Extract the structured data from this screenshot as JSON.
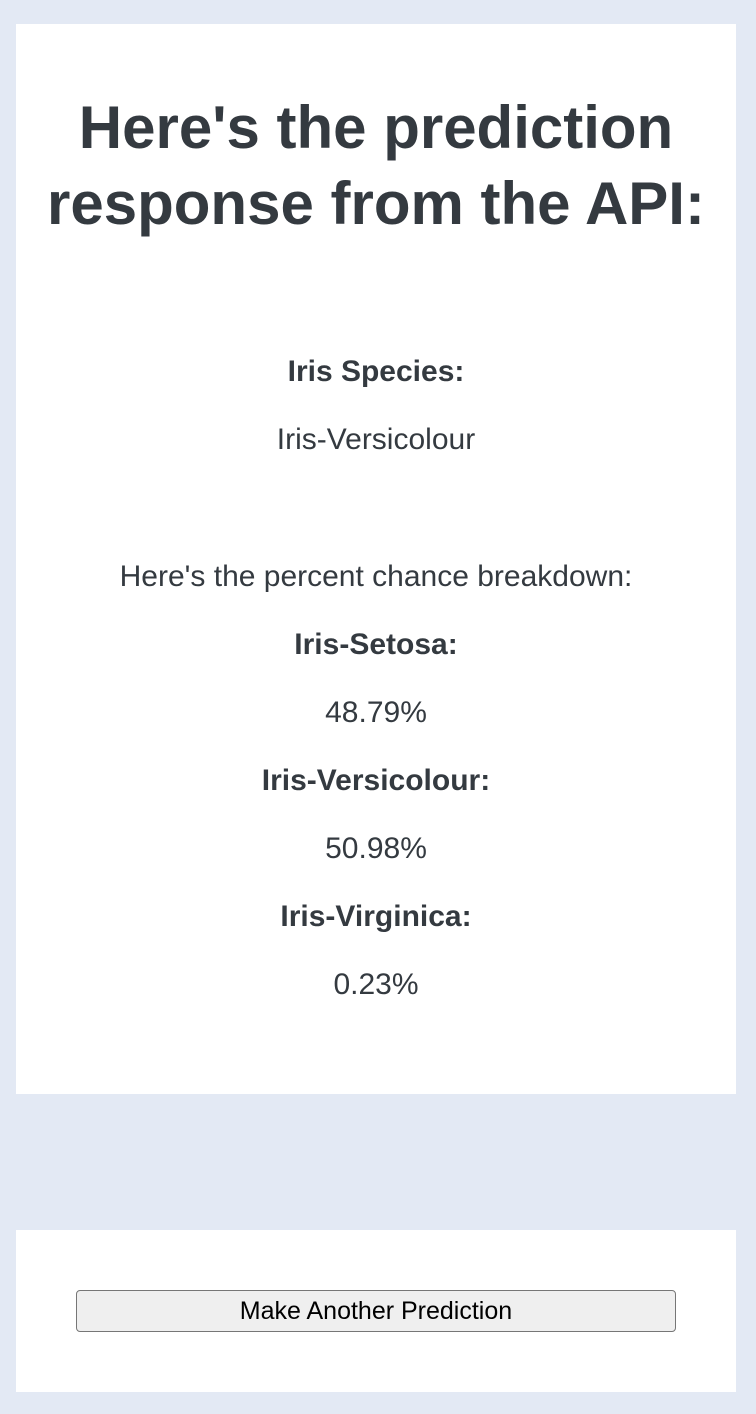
{
  "result": {
    "heading": "Here's the prediction response from the API:",
    "species_label": "Iris Species:",
    "species_value": "Iris-Versicolour",
    "breakdown_intro": "Here's the percent chance breakdown:",
    "breakdown": [
      {
        "label": "Iris-Setosa:",
        "value": "48.79%"
      },
      {
        "label": "Iris-Versicolour:",
        "value": "50.98%"
      },
      {
        "label": "Iris-Virginica:",
        "value": "0.23%"
      }
    ]
  },
  "actions": {
    "make_another_label": "Make Another Prediction"
  }
}
